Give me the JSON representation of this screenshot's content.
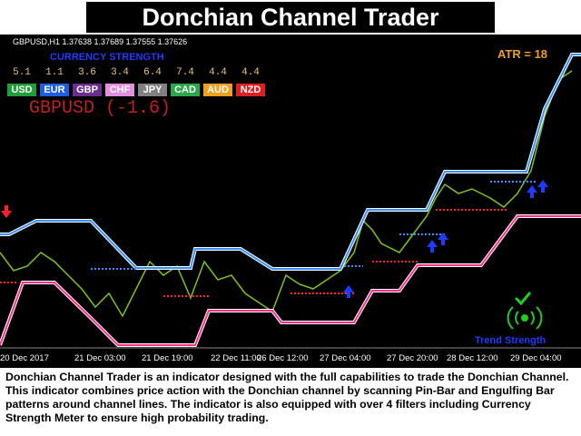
{
  "header": {
    "title": "Donchian Channel Trader"
  },
  "chart": {
    "symbol_line": "GBPUSD,H1  1.37638 1.37689 1.37555 1.37626",
    "strength_title": "CURRENCY STRENGTH",
    "currencies": [
      {
        "value": "5.1",
        "name": "USD"
      },
      {
        "value": "1.1",
        "name": "EUR"
      },
      {
        "value": "3.6",
        "name": "GBP"
      },
      {
        "value": "3.4",
        "name": "CHF"
      },
      {
        "value": "6.4",
        "name": "JPY"
      },
      {
        "value": "7.4",
        "name": "CAD"
      },
      {
        "value": "4.4",
        "name": "AUD"
      },
      {
        "value": "4.4",
        "name": "NZD"
      }
    ],
    "pair_label": "GBPUSD (-1.6)",
    "atr": "ATR = 18",
    "trend_strength": "Trend Strength",
    "x_labels": [
      "20 Dec 2017",
      "21 Dec 03:00",
      "21 Dec 19:00",
      "22 Dec 11:00",
      "26 Dec 12:00",
      "27 Dec 04:00",
      "27 Dec 20:00",
      "28 Dec 12:00",
      "29 Dec 04:00"
    ]
  },
  "description": "Donchian Channel Trader is an indicator designed with the full capabilities to trade the Donchian Channel. This indicator combines price action with the Donchian channel by scanning Pin-Bar and Engulfing Bar patterns around channel lines. The indicator is also equipped with over 4 filters including Currency Strength Meter to ensure high probability trading."
}
